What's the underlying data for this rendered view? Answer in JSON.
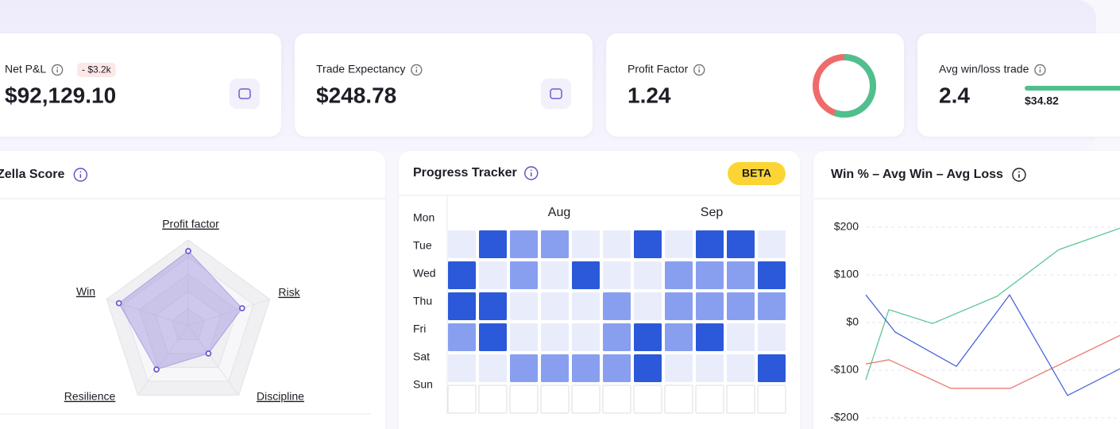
{
  "stats": [
    {
      "label": "Net P&L",
      "badge": "- $3.2k",
      "value": "$92,129.10"
    },
    {
      "label": "Trade Expectancy",
      "value": "$248.78"
    },
    {
      "label": "Profit Factor",
      "value": 1.24
    },
    {
      "label": "Avg win/loss trade",
      "value": 2.4,
      "win_label": "$34.82"
    }
  ],
  "zella": {
    "title": "Zella Score",
    "axes": [
      "Profit factor",
      "Risk",
      "Discipline",
      "Resilience",
      "Win"
    ],
    "values": [
      87,
      66,
      40,
      63,
      85
    ],
    "rlim": [
      0,
      100
    ],
    "color": "#8c7fd8"
  },
  "tracker": {
    "title": "Progress Tracker",
    "badge": "BETA",
    "months": [
      "Aug",
      "Sep"
    ],
    "days": [
      "Mon",
      "Tue",
      "Wed",
      "Thu",
      "Fri",
      "Sat",
      "Sun"
    ],
    "levels": [
      [
        1,
        3,
        2,
        2,
        1,
        1,
        3,
        1,
        3,
        3,
        1
      ],
      [
        3,
        1,
        2,
        1,
        3,
        1,
        1,
        2,
        2,
        2,
        3
      ],
      [
        3,
        3,
        1,
        1,
        1,
        2,
        1,
        2,
        2,
        2,
        2
      ],
      [
        2,
        3,
        1,
        1,
        1,
        2,
        3,
        2,
        3,
        1,
        1
      ],
      [
        1,
        1,
        2,
        2,
        2,
        2,
        3,
        1,
        1,
        1,
        3
      ],
      [
        0,
        0,
        0,
        0,
        0,
        0,
        0,
        0,
        0,
        0,
        0
      ]
    ],
    "colors": [
      "#ffffff",
      "#e9edfb",
      "#889ff0",
      "#2b59d9"
    ]
  },
  "chart_data": {
    "type": "line",
    "title": "Win % – Avg Win – Avg Loss",
    "series": [
      {
        "color": "#5cc795",
        "x": [
          0,
          2.9,
          8.4,
          16.5,
          24.3,
          32
        ],
        "values": [
          -120,
          27,
          -2,
          55,
          153,
          198
        ]
      },
      {
        "color": "#ec7b73",
        "x": [
          0,
          2.9,
          10.7,
          18.2,
          32
        ],
        "values": [
          -87,
          -78,
          -138,
          -138,
          -27
        ]
      },
      {
        "color": "#4a64dc",
        "x": [
          0,
          3.7,
          11.4,
          18.1,
          25.4,
          32
        ],
        "values": [
          58,
          -20,
          -92,
          58,
          -153,
          -97
        ]
      }
    ],
    "xlim": [
      0,
      32
    ],
    "ylim": [
      -200,
      200
    ],
    "yticks": [
      {
        "value": 200,
        "label": "$200"
      },
      {
        "value": 100,
        "label": "$100"
      },
      {
        "value": 0,
        "label": "$0"
      },
      {
        "value": -100,
        "label": "-$100"
      },
      {
        "value": -200,
        "label": "-$200"
      }
    ],
    "grid": true
  }
}
